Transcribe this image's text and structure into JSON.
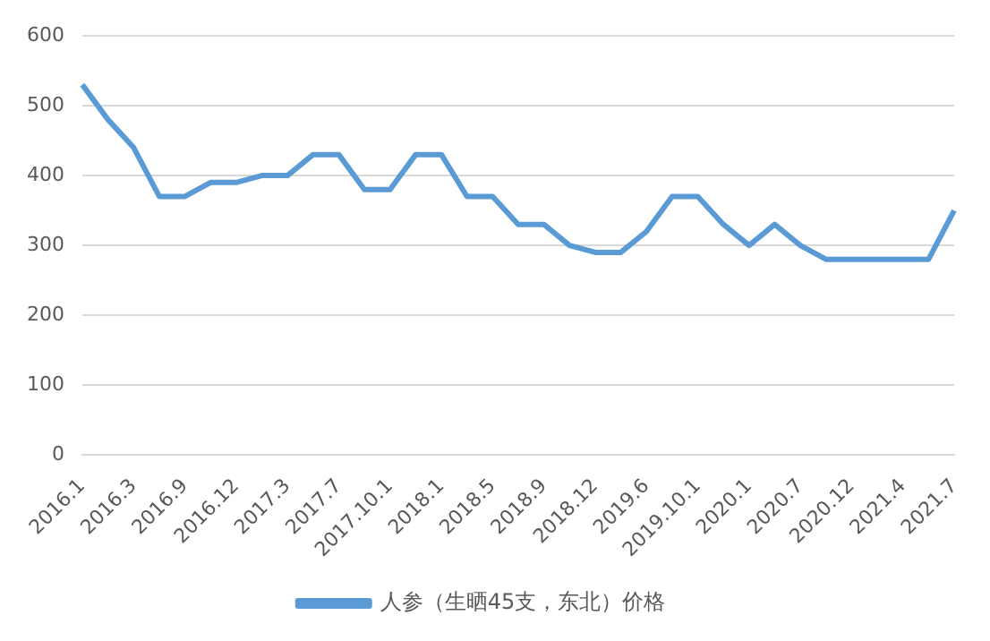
{
  "chart_data": {
    "type": "line",
    "categories": [
      "2016.1",
      null,
      "2016.3",
      null,
      "2016.9",
      null,
      "2016.12",
      null,
      "2017.3",
      null,
      "2017.7",
      null,
      "2017.10.1",
      null,
      "2018.1",
      null,
      "2018.5",
      null,
      "2018.9",
      null,
      "2018.12",
      null,
      "2019.6",
      null,
      "2019.10.1",
      null,
      "2020.1",
      null,
      "2020.7",
      null,
      "2020.12",
      null,
      "2021.4",
      null,
      "2021.7"
    ],
    "series": [
      {
        "name": "人参（生晒45支，东北）价格",
        "color": "#5b9bd5",
        "values": [
          530,
          480,
          440,
          370,
          370,
          390,
          390,
          400,
          400,
          430,
          430,
          380,
          380,
          430,
          430,
          370,
          370,
          330,
          330,
          300,
          290,
          290,
          320,
          370,
          370,
          330,
          300,
          330,
          300,
          280,
          280,
          280,
          280,
          280,
          350
        ]
      }
    ],
    "ylim": [
      0,
      600
    ],
    "yticks": [
      0,
      100,
      200,
      300,
      400,
      500,
      600
    ],
    "grid": "y",
    "legend": "bottom",
    "marker": "none"
  }
}
